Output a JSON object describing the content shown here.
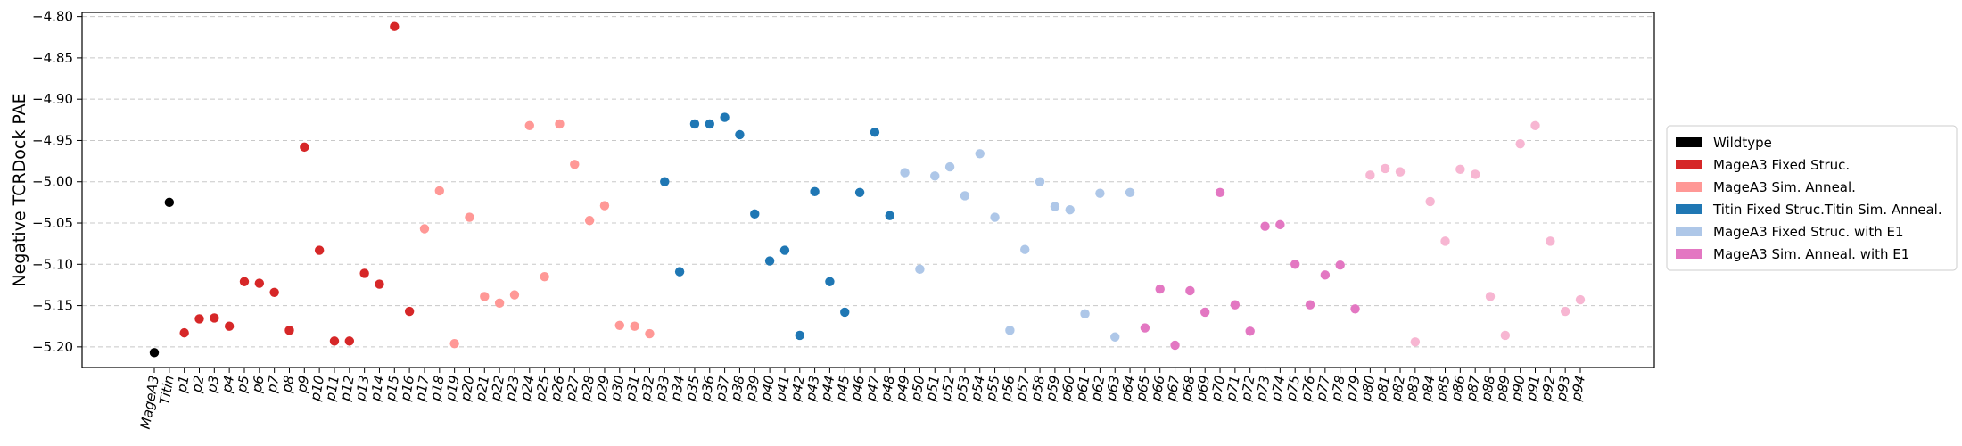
{
  "chart_data": {
    "type": "scatter",
    "ylabel": "Negative TCRDock PAE",
    "xlabel": "",
    "ylim": [
      -5.225,
      -4.795
    ],
    "yticks": [
      -5.2,
      -5.15,
      -5.1,
      -5.05,
      -5.0,
      -4.95,
      -4.9,
      -4.85,
      -4.8
    ],
    "ytick_labels": [
      "−5.20",
      "−5.15",
      "−5.10",
      "−5.05",
      "−5.00",
      "−4.95",
      "−4.90",
      "−4.85",
      "−4.80"
    ],
    "grid": "horizontal-dashed",
    "legend_position": "right",
    "categories": [
      "MageA3",
      "Titin",
      "p1",
      "p2",
      "p3",
      "p4",
      "p5",
      "p6",
      "p7",
      "p8",
      "p9",
      "p10",
      "p11",
      "p12",
      "p13",
      "p14",
      "p15",
      "p16",
      "p17",
      "p18",
      "p19",
      "p20",
      "p21",
      "p22",
      "p23",
      "p24",
      "p25",
      "p26",
      "p27",
      "p28",
      "p29",
      "p30",
      "p31",
      "p32",
      "p33",
      "p34",
      "p35",
      "p36",
      "p37",
      "p38",
      "p39",
      "p40",
      "p41",
      "p42",
      "p43",
      "p44",
      "p45",
      "p46",
      "p47",
      "p48",
      "p49",
      "p50",
      "p51",
      "p52",
      "p53",
      "p54",
      "p55",
      "p56",
      "p57",
      "p58",
      "p59",
      "p60",
      "p61",
      "p62",
      "p63",
      "p64",
      "p65",
      "p66",
      "p67",
      "p68",
      "p69",
      "p70",
      "p71",
      "p72",
      "p73",
      "p74",
      "p75",
      "p76",
      "p77",
      "p78",
      "p79",
      "p80",
      "p81",
      "p82",
      "p83",
      "p84",
      "p85",
      "p86",
      "p87",
      "p88",
      "p89",
      "p90",
      "p91",
      "p92",
      "p93",
      "p94"
    ],
    "series": [
      {
        "name": "Wildtype",
        "color": "#000000",
        "points": [
          [
            "MageA3",
            -5.207
          ],
          [
            "Titin",
            -5.025
          ]
        ]
      },
      {
        "name": "MageA3 Fixed Struc.",
        "color": "#d62728",
        "points": [
          [
            "p1",
            -5.183
          ],
          [
            "p2",
            -5.166
          ],
          [
            "p3",
            -5.165
          ],
          [
            "p4",
            -5.175
          ],
          [
            "p5",
            -5.121
          ],
          [
            "p6",
            -5.123
          ],
          [
            "p7",
            -5.134
          ],
          [
            "p8",
            -5.18
          ],
          [
            "p9",
            -4.958
          ],
          [
            "p10",
            -5.083
          ],
          [
            "p11",
            -5.193
          ],
          [
            "p12",
            -5.193
          ],
          [
            "p13",
            -5.111
          ],
          [
            "p14",
            -5.124
          ],
          [
            "p15",
            -4.812
          ],
          [
            "p16",
            -5.157
          ]
        ]
      },
      {
        "name": "MageA3 Sim. Anneal.",
        "color": "#ff9896",
        "points": [
          [
            "p17",
            -5.057
          ],
          [
            "p18",
            -5.011
          ],
          [
            "p19",
            -5.196
          ],
          [
            "p20",
            -5.043
          ],
          [
            "p21",
            -5.139
          ],
          [
            "p22",
            -5.147
          ],
          [
            "p23",
            -5.137
          ],
          [
            "p24",
            -4.932
          ],
          [
            "p25",
            -5.115
          ],
          [
            "p26",
            -4.93
          ],
          [
            "p27",
            -4.979
          ],
          [
            "p28",
            -5.047
          ],
          [
            "p29",
            -5.029
          ],
          [
            "p30",
            -5.174
          ],
          [
            "p31",
            -5.175
          ],
          [
            "p32",
            -5.184
          ]
        ]
      },
      {
        "name": "Titin Fixed Struc.Titin Sim. Anneal.",
        "color": "#1f77b4",
        "points": [
          [
            "p33",
            -5.0
          ],
          [
            "p34",
            -5.109
          ],
          [
            "p35",
            -4.93
          ],
          [
            "p36",
            -4.93
          ],
          [
            "p37",
            -4.922
          ],
          [
            "p38",
            -4.943
          ],
          [
            "p39",
            -5.039
          ],
          [
            "p40",
            -5.096
          ],
          [
            "p41",
            -5.083
          ],
          [
            "p42",
            -5.186
          ],
          [
            "p43",
            -5.012
          ],
          [
            "p44",
            -5.121
          ],
          [
            "p45",
            -5.158
          ],
          [
            "p46",
            -5.013
          ],
          [
            "p47",
            -4.94
          ],
          [
            "p48",
            -5.041
          ]
        ]
      },
      {
        "name": "MageA3 Fixed Struc. with E1",
        "color": "#aec7e8",
        "points": [
          [
            "p49",
            -4.989
          ],
          [
            "p50",
            -5.106
          ],
          [
            "p51",
            -4.993
          ],
          [
            "p52",
            -4.982
          ],
          [
            "p53",
            -5.017
          ],
          [
            "p54",
            -4.966
          ],
          [
            "p55",
            -5.043
          ],
          [
            "p56",
            -5.18
          ],
          [
            "p57",
            -5.082
          ],
          [
            "p58",
            -5.0
          ],
          [
            "p59",
            -5.03
          ],
          [
            "p60",
            -5.034
          ],
          [
            "p61",
            -5.16
          ],
          [
            "p62",
            -5.014
          ],
          [
            "p63",
            -5.188
          ],
          [
            "p64",
            -5.013
          ]
        ]
      },
      {
        "name": "MageA3 Sim. Anneal. with E1",
        "color": "#e377c2",
        "points": [
          [
            "p65",
            -5.177
          ],
          [
            "p66",
            -5.13
          ],
          [
            "p67",
            -5.198
          ],
          [
            "p68",
            -5.132
          ],
          [
            "p69",
            -5.158
          ],
          [
            "p70",
            -5.013
          ],
          [
            "p71",
            -5.149
          ],
          [
            "p72",
            -5.181
          ],
          [
            "p73",
            -5.054
          ],
          [
            "p74",
            -5.052
          ],
          [
            "p75",
            -5.1
          ],
          [
            "p76",
            -5.149
          ],
          [
            "p77",
            -5.113
          ],
          [
            "p78",
            -5.101
          ],
          [
            "p79",
            -5.154
          ]
        ]
      },
      {
        "name": "",
        "color": "#f7b6d2",
        "points": [
          [
            "p80",
            -4.992
          ],
          [
            "p81",
            -4.984
          ],
          [
            "p82",
            -4.988
          ],
          [
            "p83",
            -5.194
          ],
          [
            "p84",
            -5.024
          ],
          [
            "p85",
            -5.072
          ],
          [
            "p86",
            -4.985
          ],
          [
            "p87",
            -4.991
          ],
          [
            "p88",
            -5.139
          ],
          [
            "p89",
            -5.186
          ],
          [
            "p90",
            -4.954
          ],
          [
            "p91",
            -4.932
          ],
          [
            "p92",
            -5.072
          ],
          [
            "p93",
            -5.157
          ],
          [
            "p94",
            -5.143
          ]
        ]
      }
    ]
  }
}
